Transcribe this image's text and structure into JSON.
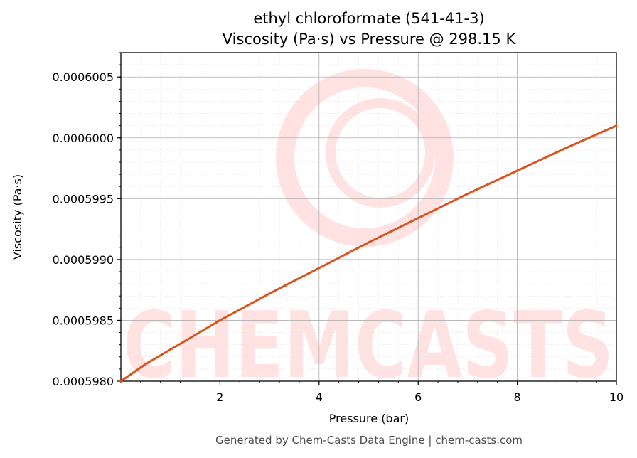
{
  "chart_data": {
    "type": "line",
    "title": "ethyl chloroformate (541-41-3)",
    "subtitle": "Viscosity (Pa·s) vs Pressure @ 298.15 K",
    "xlabel": "Pressure (bar)",
    "ylabel": "Viscosity (Pa·s)",
    "xlim": [
      0,
      10
    ],
    "ylim": [
      0.000598,
      0.0006007
    ],
    "x_ticks": [
      2,
      4,
      6,
      8,
      10
    ],
    "x_tick_labels": [
      "2",
      "4",
      "6",
      "8",
      "10"
    ],
    "y_ticks": [
      0.000598,
      0.0005985,
      0.000599,
      0.0005995,
      0.0006,
      0.0006005
    ],
    "y_tick_labels": [
      "0.0005980",
      "0.0005985",
      "0.0005990",
      "0.0005995",
      "0.0006000",
      "0.0006005"
    ],
    "grid": true,
    "series": [
      {
        "color": "#d9541e",
        "x": [
          0,
          0.5,
          1,
          1.5,
          2,
          3,
          4,
          5,
          6,
          7,
          8,
          9,
          10
        ],
        "y": [
          0.000598,
          0.00059814,
          0.00059826,
          0.00059838,
          0.0005985,
          0.00059872,
          0.00059893,
          0.00059914,
          0.00059934,
          0.00059954,
          0.00059973,
          0.00059992,
          0.0006001
        ]
      }
    ]
  },
  "watermark": "CHEMCASTS",
  "footer": "Generated by Chem-Casts Data Engine | chem-casts.com"
}
